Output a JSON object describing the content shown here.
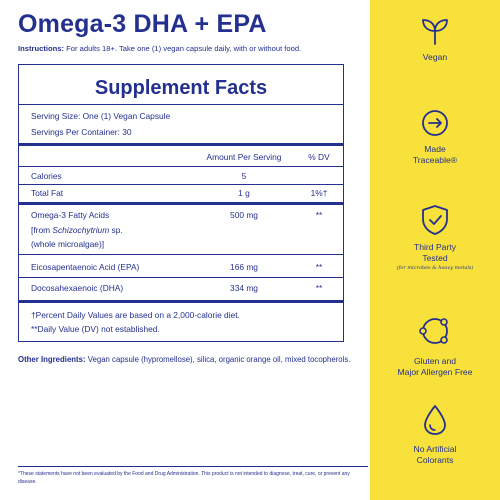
{
  "product": {
    "title": "Omega-3 DHA + EPA",
    "instructions_label": "Instructions:",
    "instructions_text": "For adults 18+. Take one (1) vegan capsule daily, with or without food."
  },
  "facts": {
    "heading": "Supplement Facts",
    "serving_size": "Serving Size: One (1) Vegan Capsule",
    "servings_per_container": "Servings Per Container: 30",
    "col_amount": "Amount Per Serving",
    "col_dv": "% DV",
    "rows": [
      {
        "name": "Calories",
        "amount": "5",
        "dv": ""
      },
      {
        "name": "Total Fat",
        "amount": "1 g",
        "dv": "1%†"
      },
      {
        "name": "Omega-3 Fatty Acids",
        "amount": "500 mg",
        "dv": "**",
        "line2_pre": "[from ",
        "line2_em": "Schizochytrium",
        "line2_post": " sp.",
        "line3": "(whole microalgae)]"
      },
      {
        "name": "Eicosapentaenoic Acid (EPA)",
        "amount": "166 mg",
        "dv": "**"
      },
      {
        "name": "Docosahexaenoic (DHA)",
        "amount": "334 mg",
        "dv": "**"
      }
    ],
    "footnote1": "†Percent Daily Values are based on a 2,000-calorie diet.",
    "footnote2": "**Daily Value (DV) not established."
  },
  "other_ingredients": {
    "label": "Other Ingredients:",
    "text": "Vegan capsule (hypromellose), silica, organic orange oil, mixed tocopherols."
  },
  "disclaimer": "*These statements have not been evaluated by the Food and Drug Administration. This product is not intended to diagnose, treat, cure, or prevent any disease.",
  "badges": [
    {
      "icon": "sprout-icon",
      "label1": "Vegan",
      "label2": "",
      "sub": ""
    },
    {
      "icon": "traceable-arrow-icon",
      "label1": "Made",
      "label2": "Traceable®",
      "sub": ""
    },
    {
      "icon": "shield-check-icon",
      "label1": "Third Party",
      "label2": "Tested",
      "sub": "(for microbes & heavy metals)"
    },
    {
      "icon": "allergen-free-icon",
      "label1": "Gluten and",
      "label2": "Major Allergen Free",
      "sub": ""
    },
    {
      "icon": "drop-icon",
      "label1": "No Artificial",
      "label2": "Colorants",
      "sub": ""
    }
  ],
  "colors": {
    "navy": "#24308f",
    "yellow": "#f7e13a",
    "background": "#ffffff"
  }
}
